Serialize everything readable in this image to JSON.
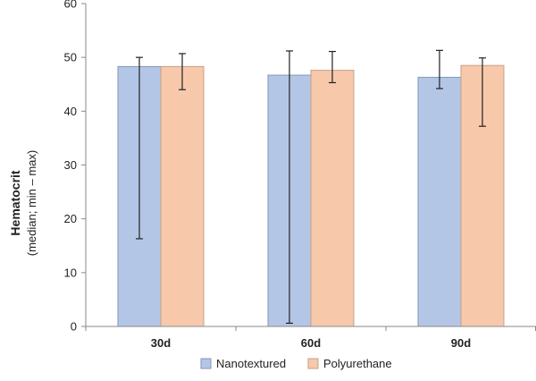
{
  "chart_data": {
    "type": "bar",
    "categories": [
      "30d",
      "60d",
      "90d"
    ],
    "series": [
      {
        "name": "Nanotextured",
        "color": "#B4C6E6",
        "stroke": "#8496B8",
        "values": [
          48.3,
          46.7,
          46.3
        ],
        "err_min": [
          16.3,
          0.6,
          44.2
        ],
        "err_max": [
          50.0,
          51.2,
          51.3
        ]
      },
      {
        "name": "Polyurethane",
        "color": "#F7C9AA",
        "stroke": "#C4A088",
        "values": [
          48.3,
          47.6,
          48.5
        ],
        "err_min": [
          44.0,
          45.3,
          37.2
        ],
        "err_max": [
          50.7,
          51.1,
          49.9
        ]
      }
    ],
    "ylabel": "Hematocrit",
    "ylabel_sub": "(median; min – max)",
    "ylim": [
      0,
      60
    ],
    "yticks": [
      0,
      10,
      20,
      30,
      40,
      50,
      60
    ],
    "grid": false,
    "legend": "bottom"
  }
}
